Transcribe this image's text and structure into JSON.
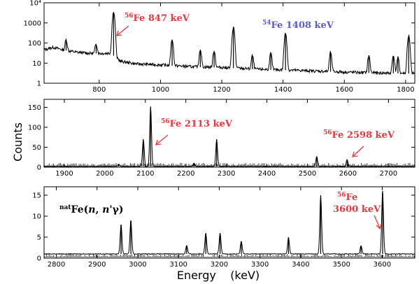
{
  "colors": {
    "annotation_red": "#e8383d",
    "annotation_blue": "#5b5bd6",
    "trace": "#000000"
  },
  "shared": {
    "ylabel": "Counts",
    "xlabel": "Energy    (keV)"
  },
  "chart_data": [
    {
      "type": "line",
      "yscale": "log",
      "xlim": [
        620,
        1830
      ],
      "ylim": [
        1,
        10000
      ],
      "xticks": [
        "800",
        "1000",
        "1200",
        "1400",
        "1600",
        "1800"
      ],
      "xtick_values": [
        800,
        1000,
        1200,
        1400,
        1600,
        1800
      ],
      "yticks": [
        "1",
        "10",
        "100",
        "1000",
        "10⁴"
      ],
      "ytick_values": [
        1,
        10,
        100,
        1000,
        10000
      ],
      "baseline": [
        [
          620,
          45
        ],
        [
          650,
          60
        ],
        [
          680,
          45
        ],
        [
          720,
          35
        ],
        [
          770,
          30
        ],
        [
          820,
          30
        ],
        [
          840,
          32
        ],
        [
          850,
          20
        ],
        [
          870,
          12
        ],
        [
          920,
          9
        ],
        [
          1000,
          8
        ],
        [
          1100,
          6.5
        ],
        [
          1200,
          6
        ],
        [
          1300,
          5
        ],
        [
          1400,
          4.5
        ],
        [
          1500,
          4
        ],
        [
          1600,
          3.5
        ],
        [
          1700,
          3.2
        ],
        [
          1830,
          3
        ]
      ],
      "peaks": [
        [
          692,
          100
        ],
        [
          790,
          60
        ],
        [
          847,
          3500
        ],
        [
          1038,
          140
        ],
        [
          1130,
          40
        ],
        [
          1175,
          35
        ],
        [
          1238,
          600
        ],
        [
          1300,
          18
        ],
        [
          1360,
          25
        ],
        [
          1408,
          300
        ],
        [
          1555,
          30
        ],
        [
          1680,
          20
        ],
        [
          1760,
          20
        ],
        [
          1775,
          15
        ],
        [
          1810,
          220
        ]
      ],
      "annotations": [
        {
          "mass": "56",
          "text": "Fe 847 keV",
          "color": "red"
        },
        {
          "mass": "54",
          "text": "Fe 1408 keV",
          "color": "blue"
        }
      ]
    },
    {
      "type": "line",
      "yscale": "linear",
      "xlim": [
        1850,
        2765
      ],
      "ylim": [
        0,
        170
      ],
      "xticks": [
        "1900",
        "2000",
        "2100",
        "2200",
        "2300",
        "2400",
        "2500",
        "2600",
        "2700"
      ],
      "xtick_values": [
        1900,
        2000,
        2100,
        2200,
        2300,
        2400,
        2500,
        2600,
        2700
      ],
      "yticks": [
        "0",
        "50",
        "100",
        "150"
      ],
      "ytick_values": [
        0,
        50,
        100,
        150
      ],
      "baseline": [
        [
          1850,
          2
        ],
        [
          2765,
          2
        ]
      ],
      "peaks": [
        [
          2034,
          6
        ],
        [
          2095,
          68
        ],
        [
          2113,
          150
        ],
        [
          2220,
          8
        ],
        [
          2276,
          68
        ],
        [
          2523,
          25
        ],
        [
          2598,
          17
        ]
      ],
      "annotations": [
        {
          "mass": "56",
          "text": "Fe 2113 keV",
          "color": "red"
        },
        {
          "mass": "56",
          "text": "Fe 2598 keV",
          "color": "red"
        }
      ]
    },
    {
      "type": "line",
      "yscale": "linear",
      "xlim": [
        2770,
        3680
      ],
      "ylim": [
        0,
        17
      ],
      "xticks": [
        "2800",
        "2900",
        "3000",
        "3100",
        "3200",
        "3300",
        "3400",
        "3500",
        "3600"
      ],
      "xtick_values": [
        2800,
        2900,
        3000,
        3100,
        3200,
        3300,
        3400,
        3500,
        3600
      ],
      "yticks": [
        "0",
        "5",
        "10",
        "15"
      ],
      "ytick_values": [
        0,
        5,
        10,
        15
      ],
      "baseline": [
        [
          2770,
          1
        ],
        [
          3680,
          1
        ]
      ],
      "peaks": [
        [
          2959,
          7
        ],
        [
          2983,
          8
        ],
        [
          3120,
          2
        ],
        [
          3167,
          5
        ],
        [
          3202,
          5
        ],
        [
          3254,
          3
        ],
        [
          3370,
          4
        ],
        [
          3449,
          14
        ],
        [
          3548,
          2
        ],
        [
          3601,
          15
        ]
      ],
      "annotations": [
        {
          "prefix": "nat",
          "text": "Fe(",
          "italic": "n",
          "text2": ", ",
          "italic2": "n'",
          "text3": "γ)",
          "color": "black"
        },
        {
          "mass": "56",
          "text": "Fe",
          "line2": "3600 keV",
          "color": "red"
        }
      ]
    }
  ]
}
